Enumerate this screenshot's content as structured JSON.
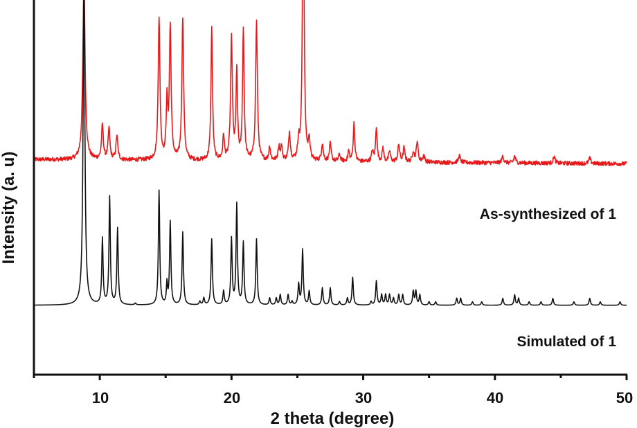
{
  "chart_data": {
    "type": "line",
    "title": "",
    "xlabel": "2 theta (degree)",
    "ylabel": "Intensity (a. u)",
    "xlim": [
      5,
      50
    ],
    "x_ticks": [
      10,
      20,
      30,
      40,
      50
    ],
    "x_minor_ticks": [
      15,
      25,
      35,
      45
    ],
    "y_ticks": [],
    "grid": false,
    "legend_position": "inline-right",
    "series": [
      {
        "name": "As-synthesized of 1",
        "color": "#e8191a",
        "offset": 0.62,
        "baseline_slope": -0.012,
        "noise": 0.006,
        "peaks": [
          {
            "x": 8.8,
            "h": 0.52,
            "w": 0.1
          },
          {
            "x": 10.2,
            "h": 0.1,
            "w": 0.08
          },
          {
            "x": 10.7,
            "h": 0.09,
            "w": 0.08
          },
          {
            "x": 11.3,
            "h": 0.07,
            "w": 0.08
          },
          {
            "x": 14.5,
            "h": 0.41,
            "w": 0.08
          },
          {
            "x": 15.1,
            "h": 0.16,
            "w": 0.07
          },
          {
            "x": 15.35,
            "h": 0.38,
            "w": 0.08
          },
          {
            "x": 16.3,
            "h": 0.41,
            "w": 0.08
          },
          {
            "x": 18.5,
            "h": 0.38,
            "w": 0.07
          },
          {
            "x": 19.4,
            "h": 0.07,
            "w": 0.07
          },
          {
            "x": 20.0,
            "h": 0.35,
            "w": 0.08
          },
          {
            "x": 20.4,
            "h": 0.25,
            "w": 0.07
          },
          {
            "x": 20.9,
            "h": 0.38,
            "w": 0.07
          },
          {
            "x": 21.9,
            "h": 0.4,
            "w": 0.08
          },
          {
            "x": 22.9,
            "h": 0.04,
            "w": 0.07
          },
          {
            "x": 23.6,
            "h": 0.04,
            "w": 0.08
          },
          {
            "x": 23.8,
            "h": 0.04,
            "w": 0.07
          },
          {
            "x": 24.4,
            "h": 0.08,
            "w": 0.08
          },
          {
            "x": 25.1,
            "h": 0.05,
            "w": 0.08
          },
          {
            "x": 25.45,
            "h": 0.93,
            "w": 0.07
          },
          {
            "x": 25.9,
            "h": 0.06,
            "w": 0.07
          },
          {
            "x": 26.9,
            "h": 0.05,
            "w": 0.08
          },
          {
            "x": 27.5,
            "h": 0.05,
            "w": 0.08
          },
          {
            "x": 28.2,
            "h": 0.02,
            "w": 0.08
          },
          {
            "x": 28.9,
            "h": 0.03,
            "w": 0.07
          },
          {
            "x": 29.3,
            "h": 0.11,
            "w": 0.07
          },
          {
            "x": 30.7,
            "h": 0.03,
            "w": 0.08
          },
          {
            "x": 31.0,
            "h": 0.1,
            "w": 0.07
          },
          {
            "x": 31.5,
            "h": 0.04,
            "w": 0.07
          },
          {
            "x": 32.0,
            "h": 0.03,
            "w": 0.08
          },
          {
            "x": 32.7,
            "h": 0.05,
            "w": 0.08
          },
          {
            "x": 33.1,
            "h": 0.04,
            "w": 0.08
          },
          {
            "x": 33.8,
            "h": 0.03,
            "w": 0.08
          },
          {
            "x": 34.1,
            "h": 0.06,
            "w": 0.08
          },
          {
            "x": 34.6,
            "h": 0.02,
            "w": 0.08
          },
          {
            "x": 37.3,
            "h": 0.02,
            "w": 0.08
          },
          {
            "x": 40.6,
            "h": 0.02,
            "w": 0.08
          },
          {
            "x": 41.5,
            "h": 0.02,
            "w": 0.08
          },
          {
            "x": 44.5,
            "h": 0.02,
            "w": 0.08
          },
          {
            "x": 47.2,
            "h": 0.015,
            "w": 0.08
          }
        ]
      },
      {
        "name": "Simulated of 1",
        "color": "#111111",
        "offset": 0.2,
        "baseline_slope": 0,
        "noise": 0,
        "peaks": [
          {
            "x": 8.8,
            "h": 0.95,
            "w": 0.08
          },
          {
            "x": 10.2,
            "h": 0.19,
            "w": 0.06
          },
          {
            "x": 10.75,
            "h": 0.31,
            "w": 0.06
          },
          {
            "x": 11.35,
            "h": 0.22,
            "w": 0.06
          },
          {
            "x": 12.7,
            "h": 0.005,
            "w": 0.06
          },
          {
            "x": 14.5,
            "h": 0.33,
            "w": 0.06
          },
          {
            "x": 15.1,
            "h": 0.06,
            "w": 0.05
          },
          {
            "x": 15.35,
            "h": 0.24,
            "w": 0.06
          },
          {
            "x": 16.3,
            "h": 0.21,
            "w": 0.06
          },
          {
            "x": 17.6,
            "h": 0.01,
            "w": 0.06
          },
          {
            "x": 17.9,
            "h": 0.02,
            "w": 0.06
          },
          {
            "x": 18.5,
            "h": 0.19,
            "w": 0.06
          },
          {
            "x": 19.4,
            "h": 0.04,
            "w": 0.06
          },
          {
            "x": 20.0,
            "h": 0.19,
            "w": 0.06
          },
          {
            "x": 20.4,
            "h": 0.29,
            "w": 0.06
          },
          {
            "x": 20.9,
            "h": 0.18,
            "w": 0.06
          },
          {
            "x": 21.9,
            "h": 0.19,
            "w": 0.06
          },
          {
            "x": 22.9,
            "h": 0.02,
            "w": 0.06
          },
          {
            "x": 23.4,
            "h": 0.02,
            "w": 0.06
          },
          {
            "x": 23.7,
            "h": 0.03,
            "w": 0.06
          },
          {
            "x": 24.3,
            "h": 0.03,
            "w": 0.06
          },
          {
            "x": 24.6,
            "h": 0.01,
            "w": 0.06
          },
          {
            "x": 25.1,
            "h": 0.06,
            "w": 0.06
          },
          {
            "x": 25.4,
            "h": 0.16,
            "w": 0.06
          },
          {
            "x": 25.9,
            "h": 0.04,
            "w": 0.06
          },
          {
            "x": 26.9,
            "h": 0.05,
            "w": 0.06
          },
          {
            "x": 27.5,
            "h": 0.05,
            "w": 0.06
          },
          {
            "x": 28.2,
            "h": 0.01,
            "w": 0.06
          },
          {
            "x": 28.8,
            "h": 0.02,
            "w": 0.06
          },
          {
            "x": 29.2,
            "h": 0.08,
            "w": 0.06
          },
          {
            "x": 30.6,
            "h": 0.01,
            "w": 0.06
          },
          {
            "x": 31.0,
            "h": 0.07,
            "w": 0.06
          },
          {
            "x": 31.4,
            "h": 0.03,
            "w": 0.06
          },
          {
            "x": 31.7,
            "h": 0.03,
            "w": 0.06
          },
          {
            "x": 32.0,
            "h": 0.03,
            "w": 0.06
          },
          {
            "x": 32.3,
            "h": 0.02,
            "w": 0.06
          },
          {
            "x": 32.7,
            "h": 0.03,
            "w": 0.06
          },
          {
            "x": 33.0,
            "h": 0.03,
            "w": 0.06
          },
          {
            "x": 33.8,
            "h": 0.04,
            "w": 0.06
          },
          {
            "x": 34.0,
            "h": 0.04,
            "w": 0.06
          },
          {
            "x": 34.3,
            "h": 0.03,
            "w": 0.06
          },
          {
            "x": 35.0,
            "h": 0.01,
            "w": 0.06
          },
          {
            "x": 35.5,
            "h": 0.01,
            "w": 0.06
          },
          {
            "x": 37.1,
            "h": 0.02,
            "w": 0.06
          },
          {
            "x": 37.4,
            "h": 0.02,
            "w": 0.06
          },
          {
            "x": 38.3,
            "h": 0.01,
            "w": 0.06
          },
          {
            "x": 39.0,
            "h": 0.01,
            "w": 0.06
          },
          {
            "x": 40.6,
            "h": 0.02,
            "w": 0.06
          },
          {
            "x": 41.5,
            "h": 0.03,
            "w": 0.06
          },
          {
            "x": 41.8,
            "h": 0.02,
            "w": 0.06
          },
          {
            "x": 42.6,
            "h": 0.01,
            "w": 0.06
          },
          {
            "x": 43.5,
            "h": 0.01,
            "w": 0.06
          },
          {
            "x": 44.4,
            "h": 0.02,
            "w": 0.06
          },
          {
            "x": 46.0,
            "h": 0.01,
            "w": 0.06
          },
          {
            "x": 47.2,
            "h": 0.02,
            "w": 0.06
          },
          {
            "x": 48.0,
            "h": 0.01,
            "w": 0.06
          },
          {
            "x": 49.5,
            "h": 0.01,
            "w": 0.06
          }
        ]
      }
    ],
    "annotations": [
      {
        "text": "As-synthesized of 1",
        "series": 0
      },
      {
        "text": "Simulated of 1",
        "series": 1
      }
    ]
  },
  "axes": {
    "x_title": "2 theta (degree)",
    "y_title": "Intensity (a. u)",
    "x_tick_labels": [
      "10",
      "20",
      "30",
      "40",
      "50"
    ]
  },
  "labels": {
    "series_0": "As-synthesized of 1",
    "series_1": "Simulated of 1"
  }
}
